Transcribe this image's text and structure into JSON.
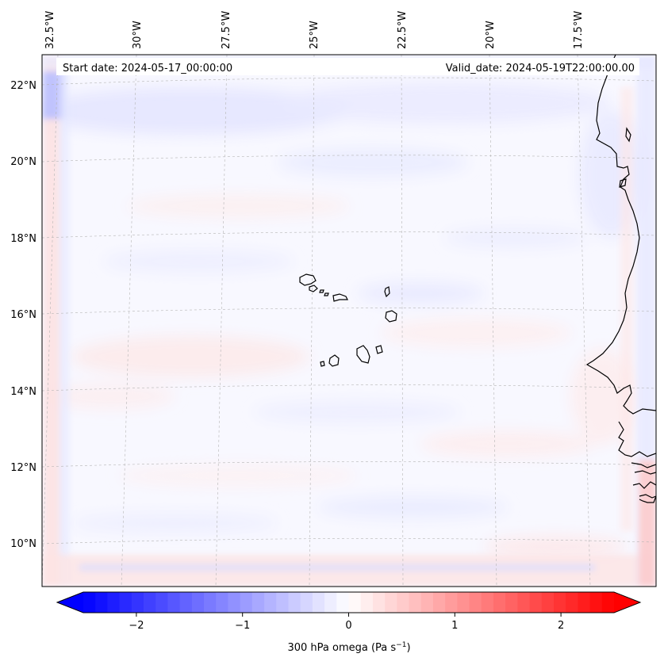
{
  "map": {
    "start_date": "Start date: 2024-05-17_00:00:00",
    "valid_date": "Valid_date: 2024-05-19T22:00:00.00",
    "lon_labels": [
      "32.5°W",
      "30°W",
      "27.5°W",
      "25°W",
      "22.5°W",
      "20°W",
      "17.5°W"
    ],
    "lat_labels": [
      "22°N",
      "20°N",
      "18°N",
      "16°N",
      "14°N",
      "12°N",
      "10°N"
    ]
  },
  "colorbar": {
    "label_prefix": "300 hPa omega (Pa s",
    "label_exponent": "−1",
    "label_suffix": ")",
    "ticks": [
      "−2",
      "−1",
      "0",
      "1",
      "2"
    ],
    "min_value": -2.75,
    "max_value": 2.75,
    "tick_values": [
      -2,
      -1,
      0,
      1,
      2
    ],
    "extend": "both",
    "colormap": "bwr",
    "color_low": "#0000ff",
    "color_mid": "#ffffff",
    "color_high": "#ff0000"
  }
}
